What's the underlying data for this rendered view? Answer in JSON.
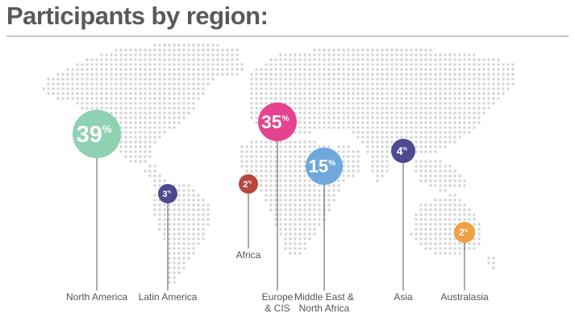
{
  "page": {
    "title": "Participants by region:"
  },
  "chart_data": {
    "type": "bubble-map",
    "title": "Participants by region:",
    "unit": "%",
    "regions": [
      {
        "name": "North America",
        "label_lines": [
          "North America"
        ],
        "value": 39,
        "color": "#8fd1b3"
      },
      {
        "name": "Latin America",
        "label_lines": [
          "Latin America"
        ],
        "value": 3,
        "color": "#4e4a8f"
      },
      {
        "name": "Africa",
        "label_lines": [
          "Africa"
        ],
        "value": 2,
        "color": "#b8473f"
      },
      {
        "name": "Europe & CIS",
        "label_lines": [
          "Europe",
          "& CIS"
        ],
        "value": 35,
        "color": "#e5438f"
      },
      {
        "name": "Middle East & North Africa",
        "label_lines": [
          "Middle East &",
          "North Africa"
        ],
        "value": 15,
        "color": "#6fa9dc"
      },
      {
        "name": "Asia",
        "label_lines": [
          "Asia"
        ],
        "value": 4,
        "color": "#4e4a8f"
      },
      {
        "name": "Australasia",
        "label_lines": [
          "Australasia"
        ],
        "value": 2,
        "color": "#f0a042"
      }
    ],
    "colors": {
      "map_dots": "#d0d0d0",
      "leader_lines": "#555555",
      "label_text": "#555555",
      "rule": "#c8c8c8"
    }
  }
}
